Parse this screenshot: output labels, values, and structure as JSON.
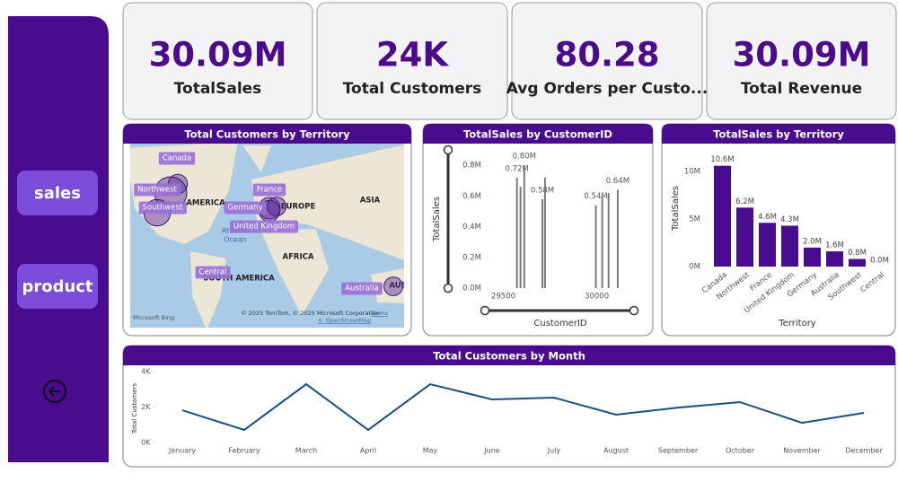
{
  "nav": {
    "buttons": [
      "sales",
      "product"
    ]
  },
  "cards": [
    {
      "value": "30.09M",
      "label": "TotalSales"
    },
    {
      "value": "24K",
      "label": "Total Customers"
    },
    {
      "value": "80.28",
      "label": "Avg Orders per Custo..."
    },
    {
      "value": "30.09M",
      "label": "Total Revenue"
    }
  ],
  "chart_data": [
    {
      "type": "map",
      "title": "Total Customers by Territory",
      "categories": [
        "Canada",
        "Northwest",
        "Southwest",
        "France",
        "Germany",
        "United Kingdom",
        "Central",
        "Australia"
      ],
      "values": [
        1600,
        4500,
        3000,
        2000,
        1500,
        1900,
        50,
        1500
      ],
      "color": "#5a2a9c",
      "map_labels": [
        "AMERICA",
        "EUROPE",
        "ASIA",
        "AFRICA",
        "SOUTH AMERICA",
        "Atlantic",
        "Ocean",
        "AUS"
      ],
      "attribution": "© 2025 TomTom, © 2025 Microsoft Corporation",
      "terms": "Terms",
      "osm": "© OpenStreetMap",
      "logo": "Microsoft Bing"
    },
    {
      "type": "bar",
      "title": "TotalSales by CustomerID",
      "x_label": "CustomerID",
      "y_label": "TotalSales",
      "x": [
        29573,
        29592,
        29612,
        29709,
        29723,
        29995,
        30029,
        30063,
        30112
      ],
      "values": [
        720000,
        660000,
        800000,
        580000,
        720000,
        540000,
        600000,
        620000,
        640000
      ],
      "value_labels": [
        "0.72M",
        null,
        "0.80M",
        "0.58M",
        null,
        "0.54M",
        null,
        null,
        "0.64M"
      ],
      "color": "#7a7a7a",
      "xlim": [
        29440,
        30170
      ],
      "xticks": [
        29500,
        30000
      ],
      "ylim": [
        0,
        880000
      ],
      "yticks": [
        {
          "value": 0,
          "label": "0.0M"
        },
        {
          "value": 200000,
          "label": "0.2M"
        },
        {
          "value": 400000,
          "label": "0.4M"
        },
        {
          "value": 600000,
          "label": "0.6M"
        },
        {
          "value": 800000,
          "label": "0.8M"
        }
      ]
    },
    {
      "type": "bar",
      "title": "TotalSales by Territory",
      "x_label": "Territory",
      "y_label": "TotalSales",
      "categories": [
        "Canada",
        "Northwest",
        "France",
        "United Kingdom",
        "Germany",
        "Australia",
        "Southwest",
        "Central"
      ],
      "values": [
        10600000,
        6200000,
        4600000,
        4300000,
        2000000,
        1600000,
        800000,
        0
      ],
      "value_labels": [
        "10.6M",
        "6.2M",
        "4.6M",
        "4.3M",
        "2.0M",
        "1.6M",
        "0.8M",
        "0.0M"
      ],
      "color": "#4a0c8e",
      "ylim": [
        0,
        12400000
      ],
      "yticks": [
        {
          "value": 0,
          "label": "0M"
        },
        {
          "value": 5000000,
          "label": "5M"
        },
        {
          "value": 10000000,
          "label": "10M"
        }
      ]
    },
    {
      "type": "line",
      "title": "Total Customers by Month",
      "y_label": "Total Customers",
      "categories": [
        "January",
        "February",
        "March",
        "April",
        "May",
        "June",
        "July",
        "August",
        "September",
        "October",
        "November",
        "December"
      ],
      "values": [
        1820,
        710,
        3290,
        710,
        3290,
        2430,
        2530,
        1570,
        1970,
        2280,
        1110,
        1670
      ],
      "color": "#1b4f80",
      "ylim": [
        0,
        4000
      ],
      "yticks": [
        {
          "value": 0,
          "label": "0K"
        },
        {
          "value": 2000,
          "label": "2K"
        },
        {
          "value": 4000,
          "label": "4K"
        }
      ]
    }
  ]
}
